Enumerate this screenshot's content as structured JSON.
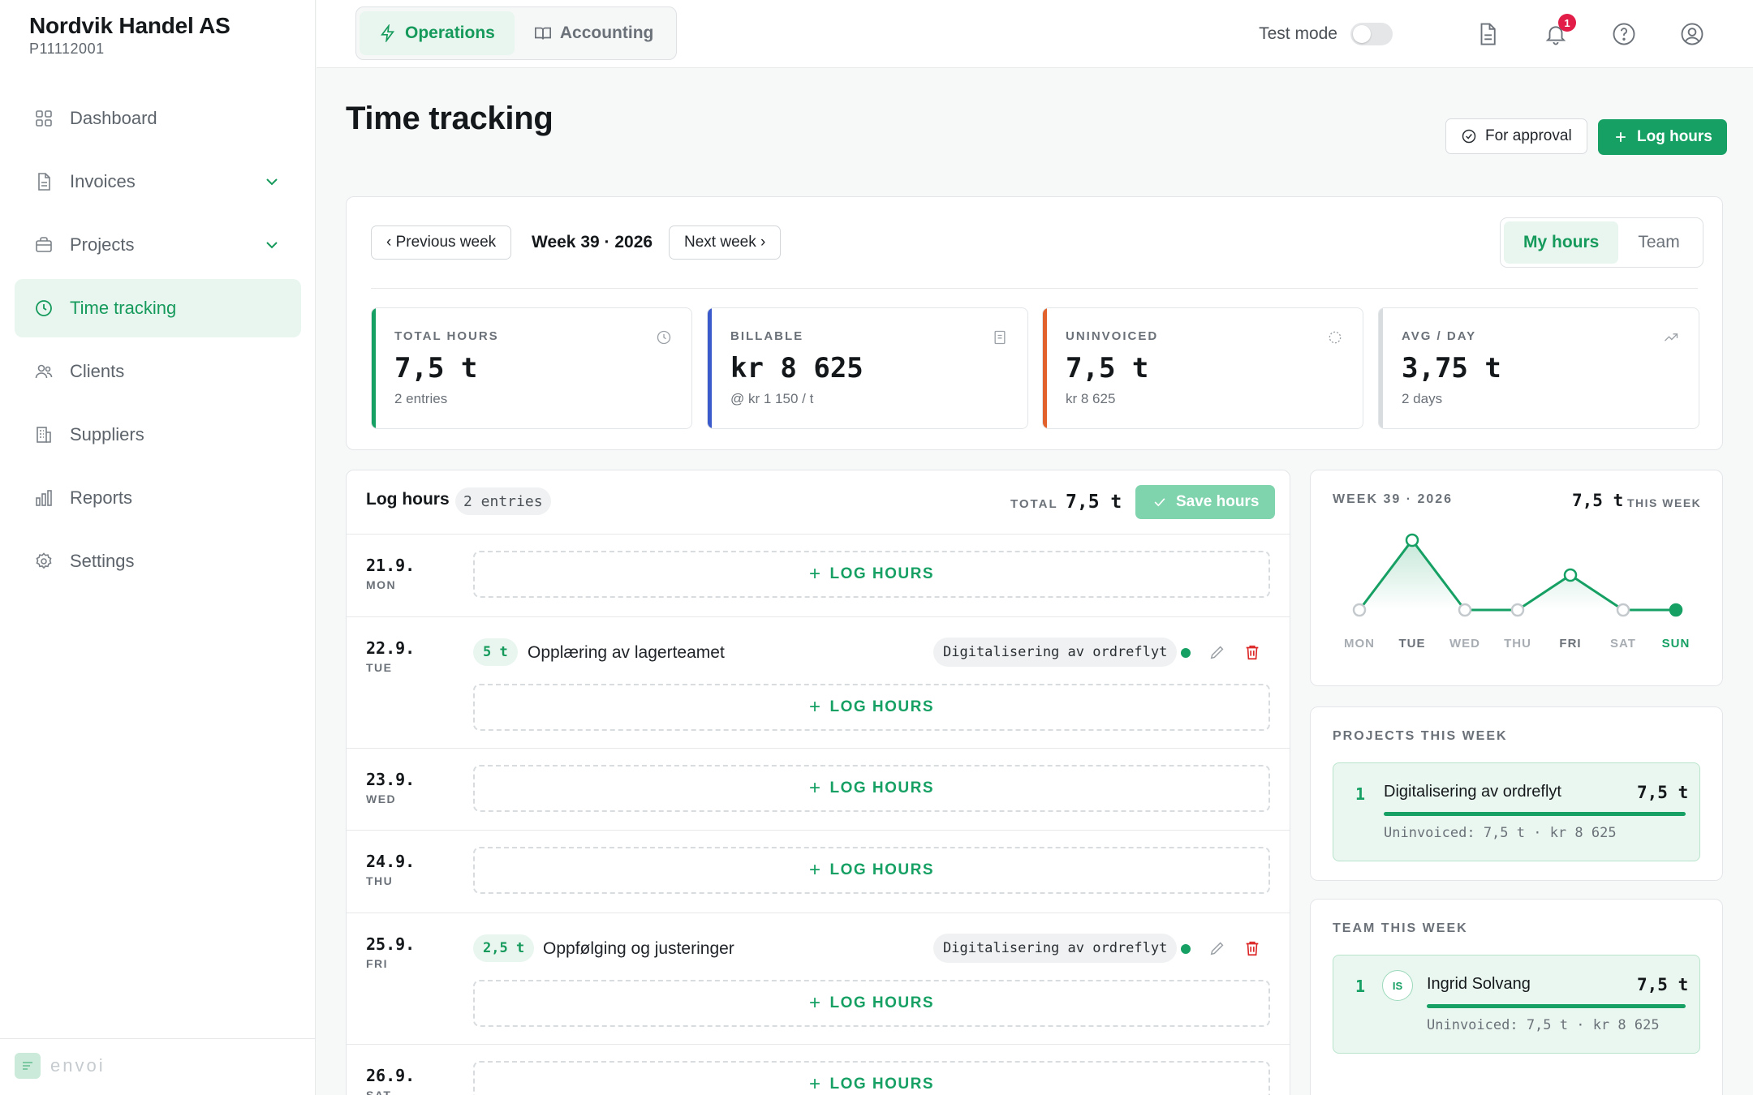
{
  "company": {
    "name": "Nordvik Handel AS",
    "id": "P11112001"
  },
  "sidebar": {
    "items": [
      {
        "label": "Dashboard",
        "icon": "grid-icon"
      },
      {
        "label": "Invoices",
        "icon": "document-icon"
      },
      {
        "label": "Projects",
        "icon": "briefcase-icon"
      },
      {
        "label": "Time tracking",
        "icon": "clock-icon",
        "active": true
      },
      {
        "label": "Clients",
        "icon": "users-icon"
      },
      {
        "label": "Suppliers",
        "icon": "building-icon"
      },
      {
        "label": "Reports",
        "icon": "bar-chart-icon"
      },
      {
        "label": "Settings",
        "icon": "gear-icon"
      }
    ],
    "brand": "envoi"
  },
  "topbar": {
    "tabs": [
      {
        "label": "Operations",
        "active": true
      },
      {
        "label": "Accounting"
      }
    ],
    "test_mode_label": "Test mode",
    "notification_count": "1"
  },
  "page": {
    "title": "Time tracking",
    "for_approval_label": "For approval",
    "log_hours_label": "Log hours"
  },
  "week_nav": {
    "prev_label": "‹ Previous week",
    "week_label": "Week 39 · 2026",
    "next_label": "Next week ›",
    "view_tabs": [
      {
        "label": "My hours",
        "active": true
      },
      {
        "label": "Team"
      }
    ]
  },
  "stats": [
    {
      "label": "TOTAL HOURS",
      "value": "7,5 t",
      "sub": "2 entries",
      "color": "#16a064"
    },
    {
      "label": "BILLABLE",
      "value": "kr 8 625",
      "sub": "@ kr 1 150 / t",
      "color": "#3b5bcc"
    },
    {
      "label": "UNINVOICED",
      "value": "7,5 t",
      "sub": "kr 8 625",
      "color": "#e2622e"
    },
    {
      "label": "AVG / DAY",
      "value": "3,75 t",
      "sub": "2 days",
      "color": "#d8dcdf"
    }
  ],
  "log": {
    "title": "Log hours",
    "entries_pill": "2 entries",
    "total_label": "TOTAL",
    "total_value": "7,5 t",
    "save_label": "Save hours",
    "add_label": "LOG HOURS",
    "days": [
      {
        "date": "21.9.",
        "day": "MON"
      },
      {
        "date": "22.9.",
        "day": "TUE",
        "entry": {
          "hours": "5 t",
          "desc": "Opplæring av lagerteamet",
          "project": "Digitalisering av ordreflyt"
        }
      },
      {
        "date": "23.9.",
        "day": "WED"
      },
      {
        "date": "24.9.",
        "day": "THU"
      },
      {
        "date": "25.9.",
        "day": "FRI",
        "entry": {
          "hours": "2,5 t",
          "desc": "Oppfølging og justeringer",
          "project": "Digitalisering av ordreflyt"
        }
      },
      {
        "date": "26.9.",
        "day": "SAT"
      }
    ]
  },
  "chart_data": {
    "type": "line",
    "title": "WEEK 39 · 2026",
    "total": "7,5 t",
    "total_sub": "THIS WEEK",
    "categories": [
      "MON",
      "TUE",
      "WED",
      "THU",
      "FRI",
      "SAT",
      "SUN"
    ],
    "values": [
      0,
      5,
      0,
      0,
      2.5,
      0,
      0
    ],
    "highlight": "SUN",
    "color": "#16a064"
  },
  "projects_week": {
    "label": "PROJECTS THIS WEEK",
    "items": [
      {
        "rank": "1",
        "name": "Digitalisering av ordreflyt",
        "value": "7,5 t",
        "sub": "Uninvoiced: 7,5 t · kr 8 625",
        "share": 1.0
      }
    ]
  },
  "team_week": {
    "label": "TEAM THIS WEEK",
    "items": [
      {
        "rank": "1",
        "initials": "IS",
        "name": "Ingrid Solvang",
        "value": "7,5 t",
        "sub": "Uninvoiced: 7,5 t · kr 8 625",
        "share": 1.0
      }
    ]
  }
}
